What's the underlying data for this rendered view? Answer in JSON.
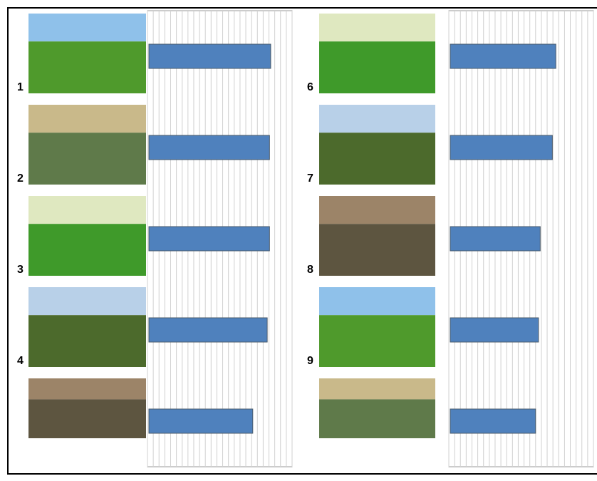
{
  "chart_data": [
    {
      "type": "bar",
      "orientation": "horizontal",
      "categories": [
        "1",
        "2",
        "3",
        "4",
        null
      ],
      "values": [
        21.3,
        21.1,
        21.1,
        20.7,
        18.2
      ],
      "color": "#4f81bd",
      "xlim": [
        0,
        25
      ],
      "xticks": [
        0,
        1,
        2,
        3,
        4,
        5,
        6,
        7,
        8,
        9,
        10,
        11,
        12,
        13,
        14,
        15,
        16,
        17,
        18,
        19,
        20,
        21,
        22,
        23,
        24,
        25
      ],
      "grid": true
    },
    {
      "type": "bar",
      "orientation": "horizontal",
      "categories": [
        "6",
        "7",
        "8",
        "9",
        null
      ],
      "values": [
        18.5,
        17.9,
        15.8,
        15.5,
        15.0
      ],
      "color": "#4f81bd",
      "xlim": [
        0,
        25
      ],
      "xticks": [
        0,
        1,
        2,
        3,
        4,
        5,
        6,
        7,
        8,
        9,
        10,
        11,
        12,
        13,
        14,
        15,
        16,
        17,
        18,
        19,
        20,
        21,
        22,
        23,
        24,
        25
      ],
      "grid": true
    }
  ]
}
